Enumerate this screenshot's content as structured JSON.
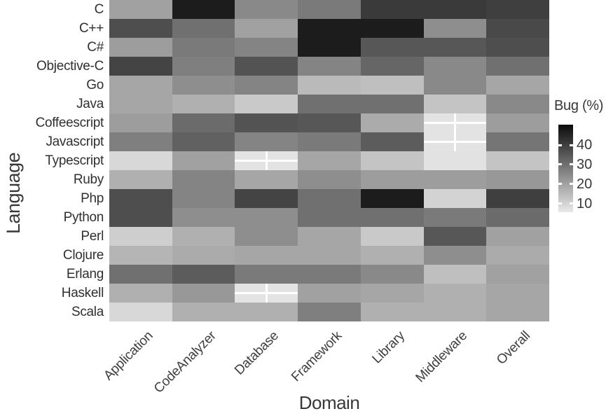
{
  "chart_data": {
    "type": "heatmap",
    "xlabel": "Domain",
    "ylabel": "Language",
    "legend": {
      "title": "Bug (%)",
      "ticks": [
        40,
        30,
        20,
        10
      ]
    },
    "columns": [
      "Application",
      "CodeAnalyzer",
      "Database",
      "Framework",
      "Library",
      "Middleware",
      "Overall"
    ],
    "rows": [
      "C",
      "C++",
      "C#",
      "Objective-C",
      "Go",
      "Java",
      "Coffeescript",
      "Javascript",
      "Typescript",
      "Ruby",
      "Php",
      "Python",
      "Perl",
      "Clojure",
      "Erlang",
      "Haskell",
      "Scala"
    ],
    "values": [
      [
        20,
        47,
        25,
        28,
        41,
        41,
        40
      ],
      [
        37,
        30,
        20,
        47,
        47,
        24,
        38
      ],
      [
        21,
        28,
        26,
        47,
        35,
        35,
        37
      ],
      [
        39,
        27,
        36,
        26,
        32,
        25,
        30
      ],
      [
        19,
        24,
        26,
        15,
        14,
        25,
        19
      ],
      [
        19,
        17,
        12,
        30,
        30,
        13,
        25
      ],
      [
        21,
        31,
        36,
        35,
        18,
        null,
        21
      ],
      [
        27,
        33,
        26,
        28,
        34,
        null,
        29
      ],
      [
        9,
        20,
        null,
        19,
        13,
        7,
        13
      ],
      [
        17,
        26,
        19,
        24,
        21,
        21,
        22
      ],
      [
        37,
        26,
        39,
        30,
        47,
        10,
        40
      ],
      [
        37,
        24,
        24,
        30,
        30,
        28,
        31
      ],
      [
        11,
        17,
        24,
        19,
        12,
        35,
        20
      ],
      [
        16,
        18,
        19,
        19,
        17,
        24,
        18
      ],
      [
        30,
        34,
        28,
        28,
        25,
        14,
        20
      ],
      [
        17,
        22,
        null,
        20,
        19,
        17,
        19
      ],
      [
        9,
        17,
        17,
        27,
        17,
        17,
        19
      ]
    ],
    "na_cells": [
      [
        "Typescript",
        "Database"
      ],
      [
        "Haskell",
        "Database"
      ],
      [
        "Coffeescript",
        "Middleware"
      ],
      [
        "Javascript",
        "Middleware"
      ]
    ],
    "na_marker": "white-cross",
    "colors": {
      "high": "#0b0b0b",
      "low": "#e9e9e9",
      "na_bg": "#e3e3e3",
      "scale_min": 5.5,
      "scale_max": 50.5
    },
    "layout": {
      "grid_on": false,
      "legend_position": "right",
      "x_tick_rotation_deg": 45
    }
  }
}
